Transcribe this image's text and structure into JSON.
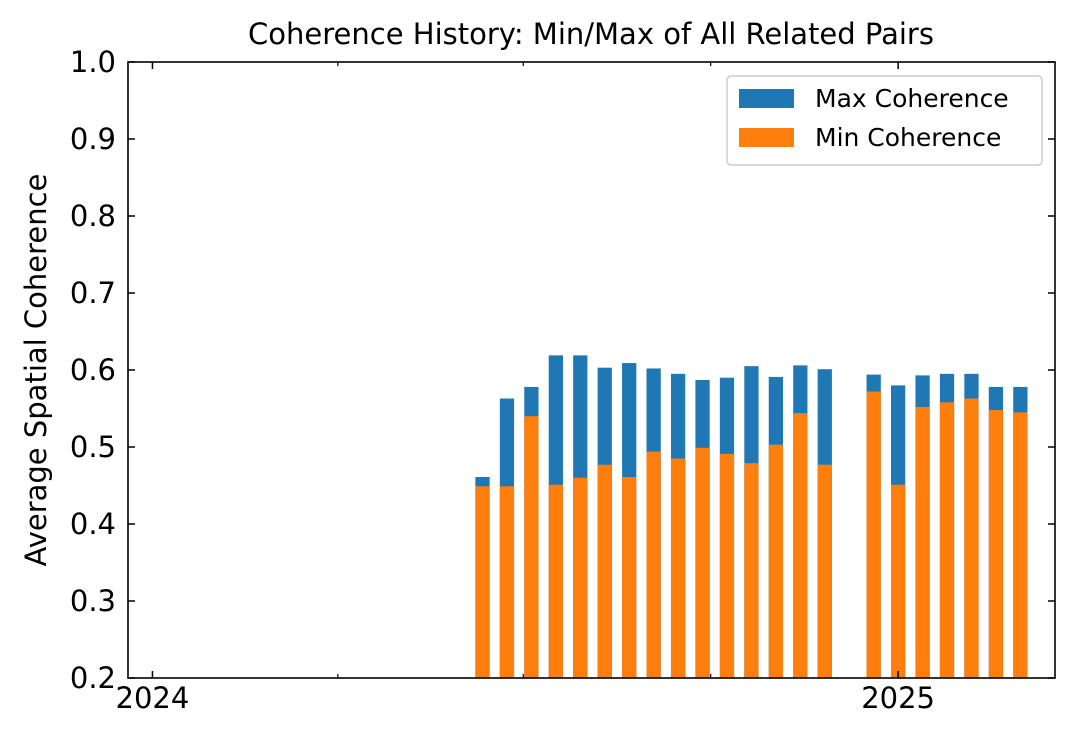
{
  "chart_data": {
    "type": "bar",
    "title": "Coherence History: Min/Max of All Related Pairs",
    "xlabel": "",
    "ylabel": "Average Spatial Coherence",
    "ylim": [
      0.2,
      1.0
    ],
    "yticks": [
      "0.2",
      "0.3",
      "0.4",
      "0.5",
      "0.6",
      "0.7",
      "0.8",
      "0.9",
      "1.0"
    ],
    "xlim": [
      "2023-12-20",
      "2025-03-19"
    ],
    "xticks": [
      {
        "date": "2024-01-01",
        "label": "2024"
      },
      {
        "date": "2025-01-01",
        "label": "2025"
      }
    ],
    "x_minor_ticks": [
      "2024-04-01",
      "2024-07-01",
      "2024-10-01",
      "2025-04-01"
    ],
    "bar_width_days": 7,
    "grid": false,
    "legend": {
      "position": "top-right"
    },
    "series": [
      {
        "name": "Max Coherence",
        "color": "#1f77b4",
        "x": [
          "2024-06-11",
          "2024-06-23",
          "2024-07-05",
          "2024-07-17",
          "2024-07-29",
          "2024-08-10",
          "2024-08-22",
          "2024-09-03",
          "2024-09-15",
          "2024-09-27",
          "2024-10-09",
          "2024-10-21",
          "2024-11-02",
          "2024-11-14",
          "2024-11-26",
          "2024-12-20",
          "2025-01-01",
          "2025-01-13",
          "2025-01-25",
          "2025-02-06",
          "2025-02-18",
          "2025-03-02"
        ],
        "values": [
          0.461,
          0.563,
          0.578,
          0.619,
          0.619,
          0.603,
          0.609,
          0.602,
          0.595,
          0.587,
          0.59,
          0.605,
          0.591,
          0.606,
          0.601,
          0.594,
          0.58,
          0.593,
          0.595,
          0.595,
          0.578,
          0.578
        ]
      },
      {
        "name": "Min Coherence",
        "color": "#ff7f0e",
        "x": [
          "2024-06-11",
          "2024-06-23",
          "2024-07-05",
          "2024-07-17",
          "2024-07-29",
          "2024-08-10",
          "2024-08-22",
          "2024-09-03",
          "2024-09-15",
          "2024-09-27",
          "2024-10-09",
          "2024-10-21",
          "2024-11-02",
          "2024-11-14",
          "2024-11-26",
          "2024-12-20",
          "2025-01-01",
          "2025-01-13",
          "2025-01-25",
          "2025-02-06",
          "2025-02-18",
          "2025-03-02"
        ],
        "values": [
          0.449,
          0.449,
          0.54,
          0.451,
          0.46,
          0.477,
          0.461,
          0.494,
          0.485,
          0.499,
          0.491,
          0.479,
          0.503,
          0.544,
          0.477,
          0.572,
          0.451,
          0.552,
          0.558,
          0.563,
          0.548,
          0.545
        ]
      }
    ]
  }
}
